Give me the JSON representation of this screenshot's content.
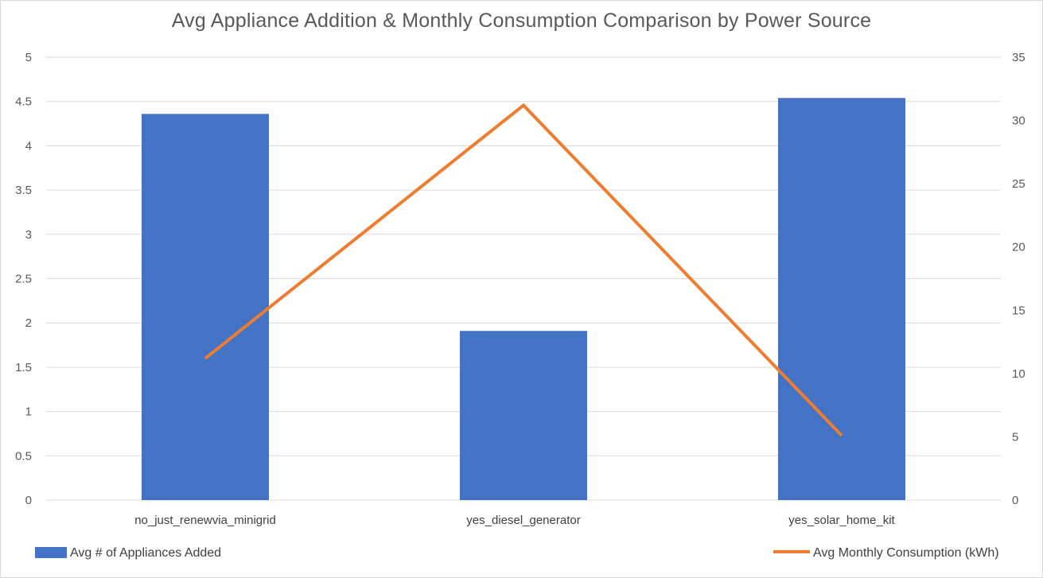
{
  "chart_data": {
    "type": "bar",
    "title": "Avg Appliance Addition & Monthly Consumption Comparison by Power Source",
    "categories": [
      "no_just_renewvia_minigrid",
      "yes_diesel_generator",
      "yes_solar_home_kit"
    ],
    "series": [
      {
        "name": "Avg # of Appliances Added",
        "type": "bar",
        "axis": "left",
        "color": "#4472c4",
        "values": [
          4.36,
          1.91,
          4.54
        ]
      },
      {
        "name": "Avg Monthly Consumption (kWh)",
        "type": "line",
        "axis": "right",
        "color": "#ed7d31",
        "values": [
          11.2,
          31.2,
          5.1
        ]
      }
    ],
    "y_left": {
      "min": 0,
      "max": 5,
      "ticks": [
        "0",
        "0.5",
        "1",
        "1.5",
        "2",
        "2.5",
        "3",
        "3.5",
        "4",
        "4.5",
        "5"
      ]
    },
    "y_right": {
      "min": 0,
      "max": 35,
      "ticks": [
        "0",
        "5",
        "10",
        "15",
        "20",
        "25",
        "30",
        "35"
      ]
    },
    "grid": true,
    "legend_placement": "bottom"
  }
}
